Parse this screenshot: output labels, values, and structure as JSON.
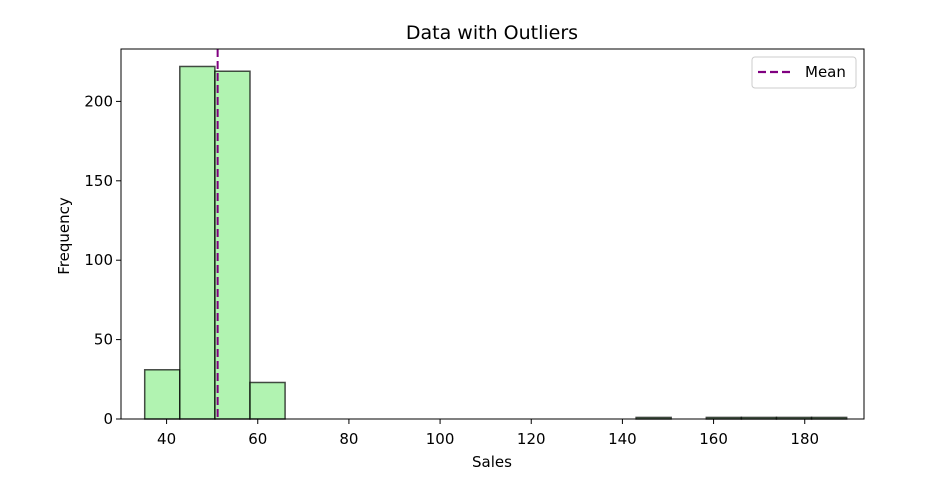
{
  "chart_data": {
    "type": "bar",
    "title": "Data with Outliers",
    "xlabel": "Sales",
    "ylabel": "Frequency",
    "xlim": [
      30,
      193
    ],
    "ylim": [
      0,
      233
    ],
    "xticks": [
      40,
      60,
      80,
      100,
      120,
      140,
      160,
      180
    ],
    "yticks": [
      0,
      50,
      100,
      150,
      200
    ],
    "series": [
      {
        "bins": [
          [
            35.2,
            42.9
          ],
          [
            42.9,
            50.6
          ],
          [
            50.6,
            58.3
          ],
          [
            58.3,
            66.0
          ],
          [
            66.0,
            73.7
          ],
          [
            73.7,
            81.4
          ],
          [
            81.4,
            89.1
          ],
          [
            89.1,
            96.8
          ],
          [
            96.8,
            104.5
          ],
          [
            104.5,
            112.2
          ],
          [
            112.2,
            119.9
          ],
          [
            119.9,
            127.6
          ],
          [
            127.6,
            135.3
          ],
          [
            135.3,
            143.0
          ],
          [
            143.0,
            150.7
          ],
          [
            150.7,
            158.4
          ],
          [
            158.4,
            166.1
          ],
          [
            166.1,
            173.8
          ],
          [
            173.8,
            181.5
          ],
          [
            181.5,
            189.2
          ]
        ],
        "values": [
          31,
          222,
          219,
          23,
          0,
          0,
          0,
          0,
          0,
          0,
          0,
          0,
          0,
          0,
          1,
          0,
          1,
          1,
          1,
          1
        ],
        "color": "#90ee90"
      }
    ],
    "reference_lines": [
      {
        "name": "Mean",
        "x": 51.2,
        "color": "#800080",
        "style": "dashed"
      }
    ],
    "legend": {
      "position": "top-right",
      "entries": [
        "Mean"
      ]
    },
    "grid": false
  }
}
